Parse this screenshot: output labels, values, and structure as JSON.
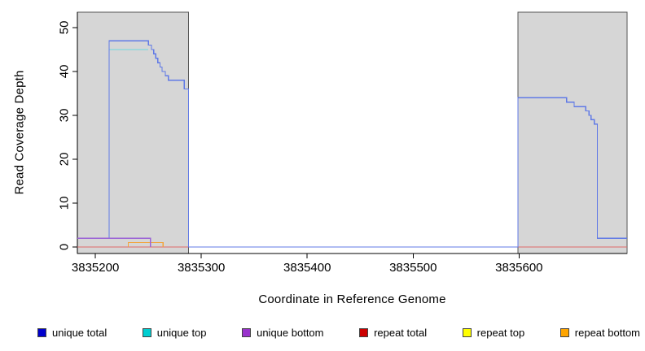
{
  "chart_data": {
    "type": "line",
    "title": "",
    "xlabel": "Coordinate in Reference Genome",
    "ylabel": "Read Coverage Depth",
    "xlim": [
      3835183,
      3835702
    ],
    "ylim": [
      0,
      53
    ],
    "xticks": [
      3835200,
      3835300,
      3835400,
      3835500,
      3835600
    ],
    "yticks": [
      0,
      10,
      20,
      30,
      40,
      50
    ],
    "grid": false,
    "masked_regions": [
      {
        "x0": 3835183,
        "x1": 3835288,
        "color": "#d6d6d6"
      },
      {
        "x0": 3835599,
        "x1": 3835702,
        "color": "#d6d6d6"
      }
    ],
    "series": [
      {
        "name": "repeat top",
        "color": "#f5ef55",
        "points": [
          [
            3835183,
            0
          ],
          [
            3835702,
            0
          ]
        ]
      },
      {
        "name": "repeat total",
        "color": "#e06a6a",
        "points": [
          [
            3835183,
            0
          ],
          [
            3835702,
            0
          ]
        ]
      },
      {
        "name": "repeat bottom",
        "color": "#f2a43e",
        "points": [
          [
            3835231,
            0
          ],
          [
            3835231,
            1
          ],
          [
            3835264,
            1
          ],
          [
            3835264,
            0
          ]
        ]
      },
      {
        "name": "unique top",
        "color": "#6fd8de",
        "points": [
          [
            3835213,
            45
          ],
          [
            3835250,
            45
          ]
        ]
      },
      {
        "name": "unique total",
        "color": "#6079e6",
        "points": [
          [
            3835183,
            2
          ],
          [
            3835213,
            2
          ],
          [
            3835213,
            47
          ],
          [
            3835250,
            47
          ],
          [
            3835250,
            46
          ],
          [
            3835253,
            46
          ],
          [
            3835253,
            45
          ],
          [
            3835255,
            45
          ],
          [
            3835255,
            44
          ],
          [
            3835257,
            44
          ],
          [
            3835257,
            43
          ],
          [
            3835259,
            43
          ],
          [
            3835259,
            42
          ],
          [
            3835261,
            42
          ],
          [
            3835261,
            41
          ],
          [
            3835263,
            41
          ],
          [
            3835263,
            40
          ],
          [
            3835266,
            40
          ],
          [
            3835266,
            39
          ],
          [
            3835269,
            39
          ],
          [
            3835269,
            38
          ],
          [
            3835284,
            38
          ],
          [
            3835284,
            36
          ],
          [
            3835288,
            36
          ],
          [
            3835288,
            0
          ],
          [
            3835599,
            0
          ],
          [
            3835599,
            34
          ],
          [
            3835645,
            34
          ],
          [
            3835645,
            33
          ],
          [
            3835652,
            33
          ],
          [
            3835652,
            32
          ],
          [
            3835663,
            32
          ],
          [
            3835663,
            31
          ],
          [
            3835666,
            31
          ],
          [
            3835666,
            30
          ],
          [
            3835668,
            30
          ],
          [
            3835668,
            29
          ],
          [
            3835671,
            29
          ],
          [
            3835671,
            28
          ],
          [
            3835674,
            28
          ],
          [
            3835674,
            2
          ],
          [
            3835702,
            2
          ]
        ]
      },
      {
        "name": "unique bottom",
        "color": "#9b63d6",
        "points": [
          [
            3835183,
            2
          ],
          [
            3835252,
            2
          ],
          [
            3835252,
            0
          ]
        ]
      }
    ],
    "legend": {
      "position": "bottom",
      "items": [
        {
          "label": "unique total",
          "color": "#0000CD"
        },
        {
          "label": "unique top",
          "color": "#00CED1"
        },
        {
          "label": "unique bottom",
          "color": "#9932CC"
        },
        {
          "label": "repeat total",
          "color": "#CC0000"
        },
        {
          "label": "repeat top",
          "color": "#FFFF00"
        },
        {
          "label": "repeat bottom",
          "color": "#FFA500"
        }
      ]
    }
  }
}
